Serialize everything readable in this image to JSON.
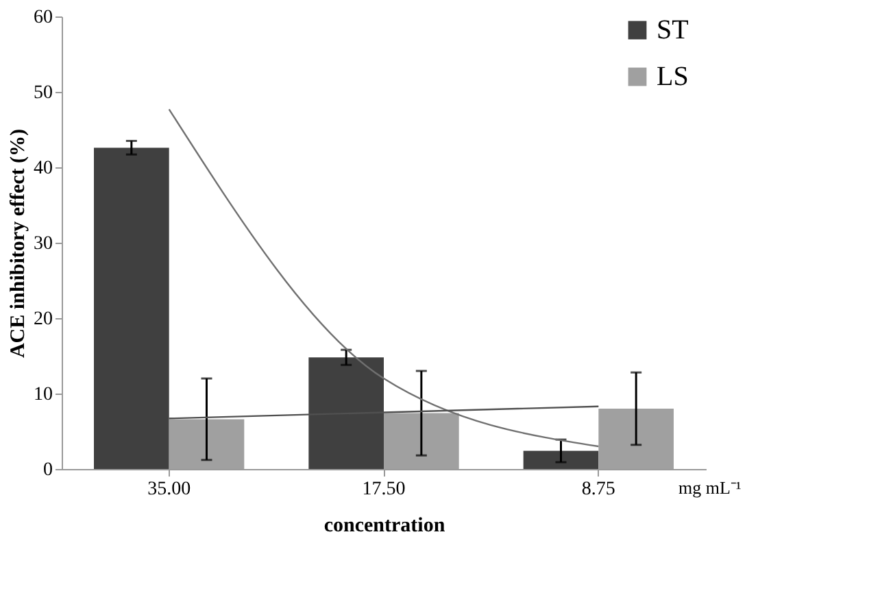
{
  "chart_data": {
    "type": "bar",
    "xlabel": "concentration",
    "ylabel": "ACE inhibitory effect (%)",
    "categories": [
      "35.00",
      "17.50",
      "8.75"
    ],
    "series": [
      {
        "name": "ST",
        "color": "#404040",
        "values": [
          42.6,
          14.8,
          2.4
        ],
        "errors": [
          0.9,
          1.0,
          1.5
        ]
      },
      {
        "name": "LS",
        "color": "#a0a0a0",
        "values": [
          6.6,
          7.4,
          8.0
        ],
        "errors": [
          5.4,
          5.6,
          4.8
        ]
      },
      {
        "type": "line",
        "color": "#707070",
        "values": [
          47.7,
          12.0,
          3.0
        ]
      },
      {
        "type": "line",
        "color": "#505050",
        "values": [
          6.7,
          7.5,
          8.3
        ]
      }
    ],
    "ylim": [
      0,
      60
    ],
    "yticks": [
      0,
      10,
      20,
      30,
      40,
      50,
      60
    ],
    "grid": false,
    "legend": "right",
    "marker": "none",
    "annotations": [
      "mg mL⁻¹"
    ]
  }
}
